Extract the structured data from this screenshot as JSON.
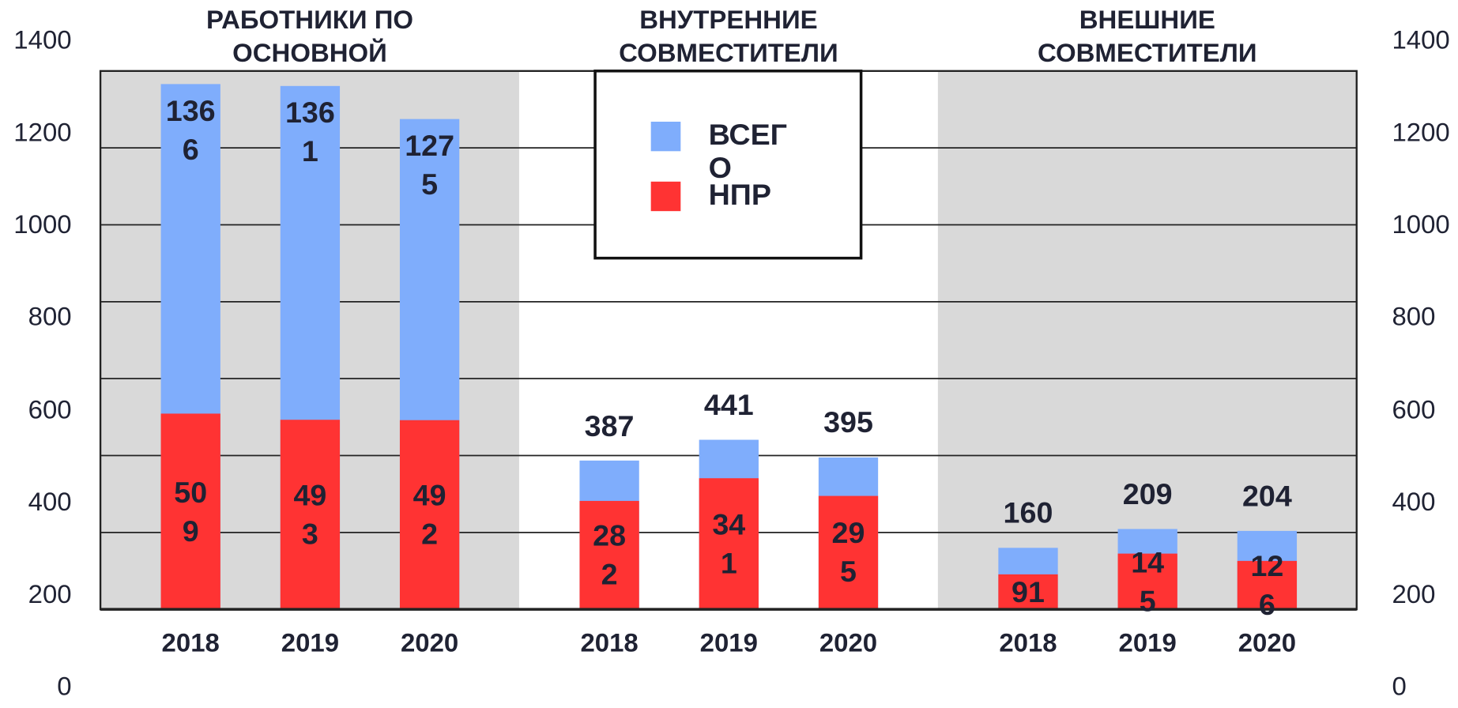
{
  "chart_data": {
    "type": "bar",
    "groups": [
      {
        "title": "РАБОТНИКИ ПО ОСНОВНОЙ",
        "categories": [
          "2018",
          "2019",
          "2020"
        ]
      },
      {
        "title": "ВНУТРЕННИЕ СОВМЕСТИТЕЛИ",
        "categories": [
          "2018",
          "2019",
          "2020"
        ]
      },
      {
        "title": "ВНЕШНИЕ СОВМЕСТИТЕЛИ",
        "categories": [
          "2018",
          "2019",
          "2020"
        ]
      }
    ],
    "series": [
      {
        "name": "ВСЕГО",
        "color": "#7fadfc",
        "values": [
          1366,
          1361,
          1275,
          387,
          441,
          395,
          160,
          209,
          204
        ]
      },
      {
        "name": "НПР",
        "color": "#ff3333",
        "values": [
          509,
          493,
          492,
          282,
          341,
          295,
          91,
          145,
          126
        ]
      }
    ],
    "overlap": true,
    "ylim": [
      0,
      1400
    ],
    "yticks": [
      0,
      200,
      400,
      600,
      800,
      1000,
      1200,
      1400
    ],
    "grid": true,
    "group_shading": [
      "#d9d9d9",
      "#ffffff",
      "#d9d9d9"
    ],
    "legend": "top-center"
  }
}
